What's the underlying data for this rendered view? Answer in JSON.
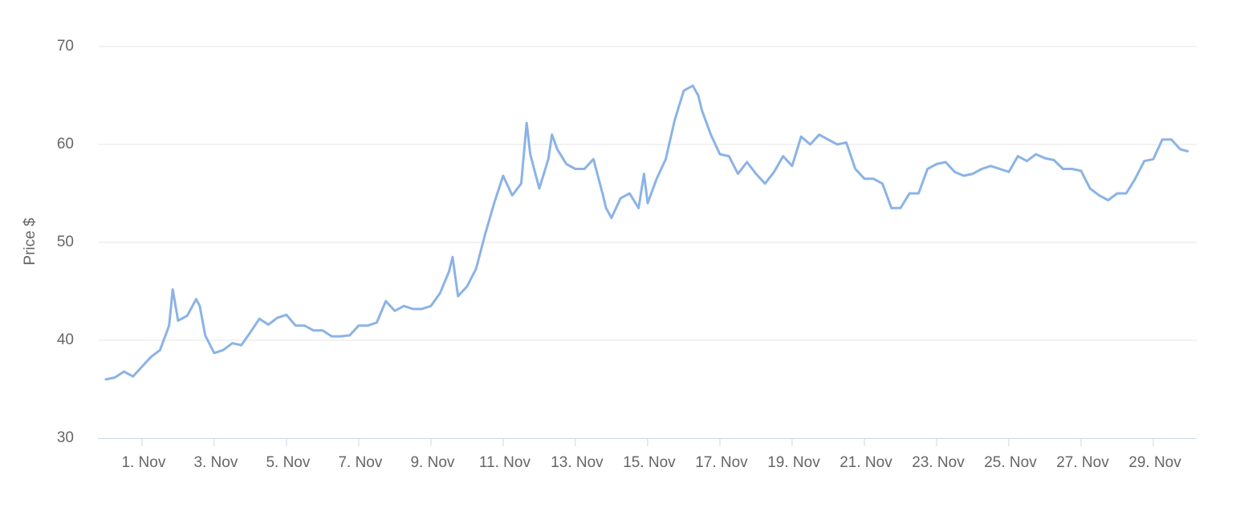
{
  "chart_data": {
    "type": "line",
    "y_label": "Price $",
    "color": "#8bb3e6",
    "x": [
      0,
      0.25,
      0.5,
      0.75,
      1.0,
      1.25,
      1.5,
      1.75,
      1.85,
      2.0,
      2.25,
      2.5,
      2.6,
      2.75,
      3.0,
      3.25,
      3.5,
      3.75,
      4.0,
      4.25,
      4.5,
      4.75,
      5.0,
      5.25,
      5.5,
      5.75,
      6.0,
      6.25,
      6.5,
      6.75,
      7.0,
      7.25,
      7.5,
      7.75,
      8.0,
      8.25,
      8.5,
      8.75,
      9.0,
      9.25,
      9.5,
      9.6,
      9.75,
      10.0,
      10.25,
      10.5,
      10.75,
      11.0,
      11.25,
      11.5,
      11.65,
      11.75,
      12.0,
      12.25,
      12.35,
      12.5,
      12.75,
      13.0,
      13.25,
      13.5,
      13.75,
      13.85,
      14.0,
      14.25,
      14.5,
      14.75,
      14.9,
      15.0,
      15.25,
      15.5,
      15.75,
      16.0,
      16.25,
      16.4,
      16.5,
      16.75,
      17.0,
      17.25,
      17.5,
      17.75,
      18.0,
      18.25,
      18.5,
      18.75,
      19.0,
      19.25,
      19.5,
      19.75,
      20.0,
      20.25,
      20.5,
      20.75,
      21.0,
      21.25,
      21.5,
      21.75,
      22.0,
      22.25,
      22.5,
      22.75,
      23.0,
      23.25,
      23.5,
      23.75,
      24.0,
      24.25,
      24.5,
      24.75,
      25.0,
      25.25,
      25.5,
      25.75,
      26.0,
      26.25,
      26.5,
      26.75,
      27.0,
      27.25,
      27.5,
      27.75,
      28.0,
      28.25,
      28.5,
      28.75,
      29.0,
      29.25,
      29.5,
      29.75,
      29.95
    ],
    "values": [
      36,
      36.2,
      36.8,
      36.3,
      37.3,
      38.3,
      39,
      41.5,
      45.2,
      42,
      42.5,
      44.2,
      43.5,
      40.5,
      38.7,
      39,
      39.7,
      39.5,
      40.8,
      42.2,
      41.6,
      42.3,
      42.6,
      41.5,
      41.5,
      41,
      41,
      40.4,
      40.4,
      40.5,
      41.5,
      41.5,
      41.8,
      44,
      43,
      43.5,
      43.2,
      43.2,
      43.5,
      44.8,
      47,
      48.5,
      44.5,
      45.5,
      47.3,
      50.8,
      54,
      56.8,
      54.8,
      56,
      62.2,
      59,
      55.5,
      58.5,
      61,
      59.5,
      58,
      57.5,
      57.5,
      58.5,
      55,
      53.5,
      52.5,
      54.5,
      55,
      53.5,
      57,
      54,
      56.5,
      58.5,
      62.5,
      65.5,
      66,
      65,
      63.5,
      61,
      59,
      58.8,
      57,
      58.2,
      57,
      56,
      57.2,
      58.8,
      57.8,
      60.8,
      60,
      61,
      60.5,
      60,
      60.2,
      57.5,
      56.5,
      56.5,
      56,
      53.5,
      53.5,
      55,
      55,
      57.5,
      58,
      58.2,
      57.2,
      56.8,
      57,
      57.5,
      57.8,
      57.5,
      57.2,
      58.8,
      58.3,
      59,
      58.6,
      58.4,
      57.5,
      57.5,
      57.3,
      55.5,
      54.8,
      54.3,
      55,
      55,
      56.5,
      58.3,
      58.5,
      60.5,
      60.5,
      59.5,
      59.3
    ],
    "xlim": [
      -0.22,
      30.2
    ],
    "xticks": [
      {
        "value": 1,
        "label": "1. Nov"
      },
      {
        "value": 3,
        "label": "3. Nov"
      },
      {
        "value": 5,
        "label": "5. Nov"
      },
      {
        "value": 7,
        "label": "7. Nov"
      },
      {
        "value": 9,
        "label": "9. Nov"
      },
      {
        "value": 11,
        "label": "11. Nov"
      },
      {
        "value": 13,
        "label": "13. Nov"
      },
      {
        "value": 15,
        "label": "15. Nov"
      },
      {
        "value": 17,
        "label": "17. Nov"
      },
      {
        "value": 19,
        "label": "19. Nov"
      },
      {
        "value": 21,
        "label": "21. Nov"
      },
      {
        "value": 23,
        "label": "23. Nov"
      },
      {
        "value": 25,
        "label": "25. Nov"
      },
      {
        "value": 27,
        "label": "27. Nov"
      },
      {
        "value": 29,
        "label": "29. Nov"
      }
    ],
    "ylim": [
      30,
      70
    ],
    "yticks": [
      30,
      40,
      50,
      60,
      70
    ],
    "grid": true
  }
}
